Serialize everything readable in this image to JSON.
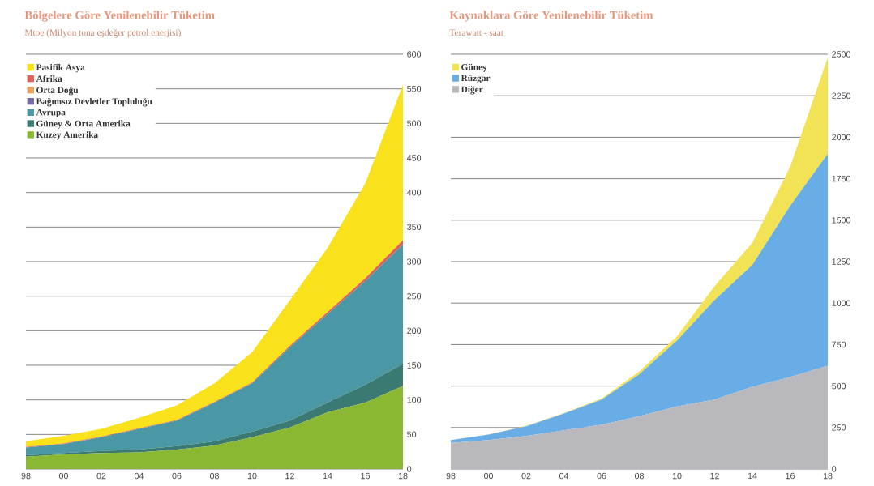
{
  "chart_data": [
    {
      "type": "area",
      "title": "Bölgelere Göre Yenilenebilir Tüketim",
      "subtitle": "Mtoe (Milyon tona eşdeğer petrol enerjisi)",
      "stacked": true,
      "grid": "y",
      "legend": "top left",
      "x": [
        1998,
        2000,
        2002,
        2004,
        2006,
        2008,
        2010,
        2012,
        2014,
        2016,
        2018
      ],
      "xlim": [
        1998,
        2018
      ],
      "xticks": [
        {
          "value": 1998,
          "label": "98"
        },
        {
          "value": 2000,
          "label": "00"
        },
        {
          "value": 2002,
          "label": "02"
        },
        {
          "value": 2004,
          "label": "04"
        },
        {
          "value": 2006,
          "label": "06"
        },
        {
          "value": 2008,
          "label": "08"
        },
        {
          "value": 2010,
          "label": "10"
        },
        {
          "value": 2012,
          "label": "12"
        },
        {
          "value": 2014,
          "label": "14"
        },
        {
          "value": 2016,
          "label": "16"
        },
        {
          "value": 2018,
          "label": "18"
        }
      ],
      "ylim": [
        0,
        600
      ],
      "yticks": [
        0,
        50,
        100,
        150,
        200,
        250,
        300,
        350,
        400,
        450,
        500,
        550,
        600
      ],
      "series": [
        {
          "name": "Kuzey Amerika",
          "color": "#8ab833",
          "values": [
            18,
            21,
            23,
            24,
            28,
            34,
            46,
            60,
            82,
            96,
            120
          ]
        },
        {
          "name": "Güney & Orta Amerika",
          "color": "#3b7a72",
          "values": [
            2,
            2,
            3,
            4,
            5,
            6,
            8,
            10,
            14,
            26,
            32
          ]
        },
        {
          "name": "Avrupa",
          "color": "#4a97a5",
          "values": [
            11,
            13,
            20,
            30,
            37,
            56,
            70,
            106,
            128,
            150,
            173
          ]
        },
        {
          "name": "Bağımsız Devletler Topluluğu",
          "color": "#7a6aa8",
          "values": [
            null,
            null,
            null,
            null,
            null,
            null,
            null,
            null,
            null,
            null,
            null
          ]
        },
        {
          "name": "Orta Doğu",
          "color": "#e8a060",
          "values": [
            null,
            null,
            null,
            null,
            null,
            null,
            null,
            null,
            null,
            null,
            null
          ]
        },
        {
          "name": "Afrika",
          "color": "#e0605a",
          "values": [
            1,
            1,
            1,
            1,
            1,
            1,
            1,
            2,
            3,
            4,
            6
          ]
        },
        {
          "name": "Pasifik Asya",
          "color": "#f9e21b",
          "values": [
            8,
            11,
            11,
            15,
            21,
            27,
            44,
            66,
            93,
            137,
            225
          ]
        }
      ]
    },
    {
      "type": "area",
      "title": "Kaynaklara  Göre Yenilenebilir Tüketim",
      "subtitle": "Terawatt - saat",
      "stacked": true,
      "grid": "y",
      "legend": "top left",
      "x": [
        1998,
        2000,
        2002,
        2004,
        2006,
        2008,
        2010,
        2012,
        2014,
        2016,
        2018
      ],
      "xlim": [
        1998,
        2018
      ],
      "xticks": [
        {
          "value": 1998,
          "label": "98"
        },
        {
          "value": 2000,
          "label": "00"
        },
        {
          "value": 2002,
          "label": "02"
        },
        {
          "value": 2004,
          "label": "04"
        },
        {
          "value": 2006,
          "label": "06"
        },
        {
          "value": 2008,
          "label": "08"
        },
        {
          "value": 2010,
          "label": "10"
        },
        {
          "value": 2012,
          "label": "12"
        },
        {
          "value": 2014,
          "label": "14"
        },
        {
          "value": 2016,
          "label": "16"
        },
        {
          "value": 2018,
          "label": "18"
        }
      ],
      "ylim": [
        0,
        2500
      ],
      "yticks": [
        0,
        250,
        500,
        750,
        1000,
        1250,
        1500,
        1750,
        2000,
        2250,
        2500
      ],
      "series": [
        {
          "name": "Diğer",
          "color": "#b9b9bd",
          "values": [
            157,
            174,
            199,
            233,
            267,
            318,
            377,
            419,
            495,
            554,
            622
          ]
        },
        {
          "name": "Rüzgar",
          "color": "#68ade6",
          "values": [
            17,
            34,
            59,
            101,
            152,
            253,
            397,
            600,
            735,
            1032,
            1278
          ]
        },
        {
          "name": "Güneş",
          "color": "#f2e356",
          "values": [
            1,
            1,
            2,
            3,
            6,
            17,
            25,
            84,
            134,
            235,
            580
          ]
        }
      ]
    }
  ]
}
